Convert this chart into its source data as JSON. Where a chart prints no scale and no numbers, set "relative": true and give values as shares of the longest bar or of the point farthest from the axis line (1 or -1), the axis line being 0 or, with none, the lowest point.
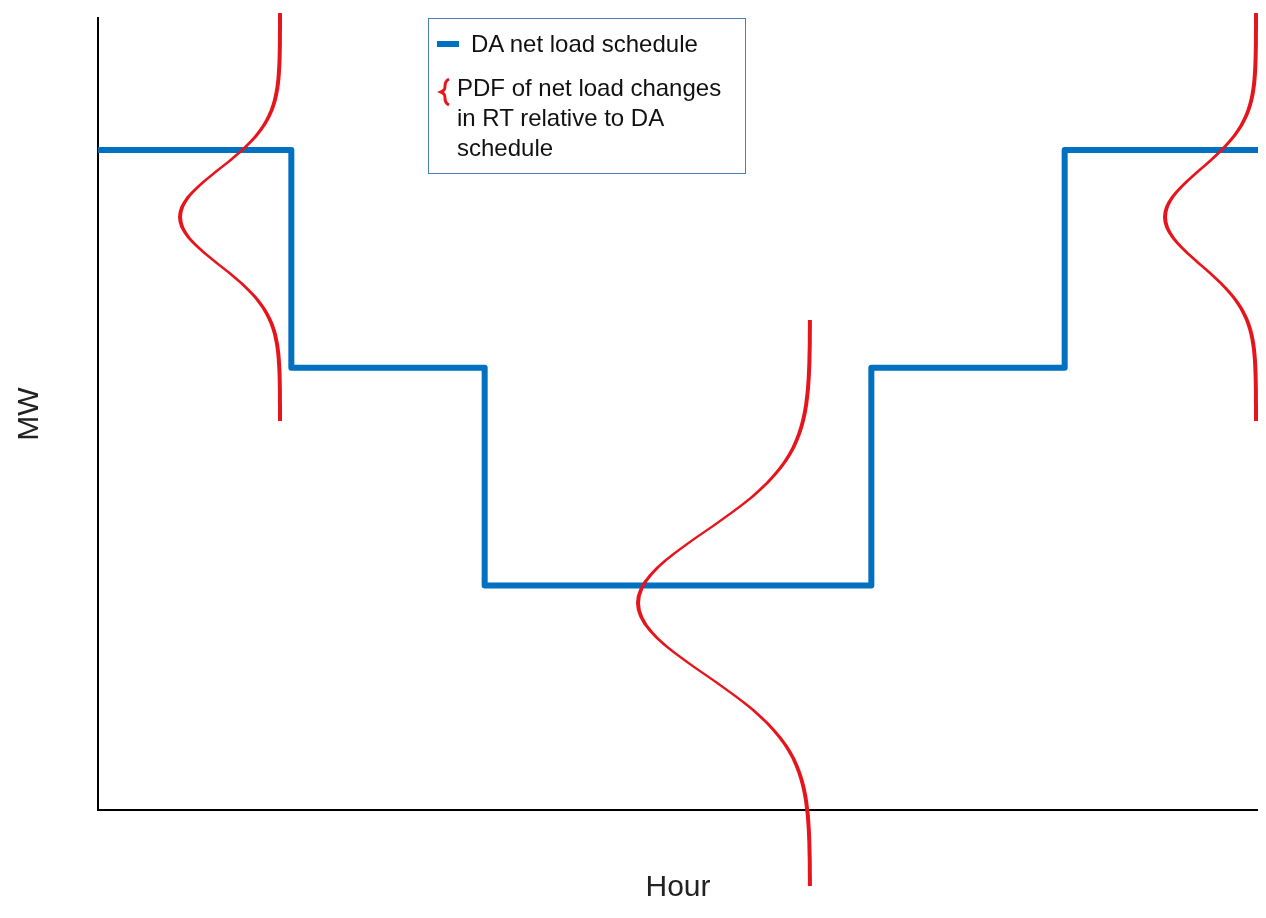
{
  "chart_data": {
    "type": "step",
    "relative": true,
    "xlabel": "Hour",
    "ylabel": "MW",
    "legend": "top",
    "categories": [
      null,
      null,
      null,
      null,
      null,
      null,
      null
    ],
    "series": [
      {
        "name": "DA net load schedule",
        "color": "#0070c0",
        "values": [
          1,
          0.67,
          0.34,
          0.34,
          0.67,
          1,
          1
        ]
      }
    ],
    "annotations": [
      "PDF of net load changes in RT relative to DA schedule"
    ]
  }
}
